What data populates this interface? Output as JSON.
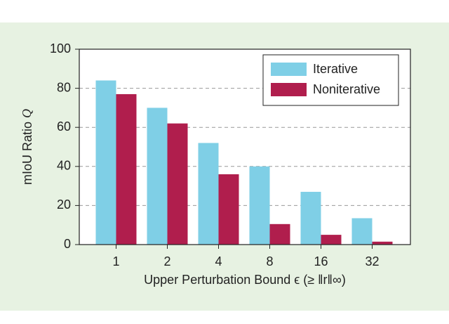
{
  "chart_data": {
    "type": "bar",
    "categories": [
      "1",
      "2",
      "4",
      "8",
      "16",
      "32"
    ],
    "series": [
      {
        "name": "Iterative",
        "color": "#7fcfe6",
        "values": [
          84,
          70,
          52,
          40,
          27,
          13.5
        ]
      },
      {
        "name": "Noniterative",
        "color": "#b01e4d",
        "values": [
          77,
          62,
          36,
          10.5,
          5,
          1.5
        ]
      }
    ],
    "ylim": [
      0,
      100
    ],
    "yticks": [
      0,
      20,
      40,
      60,
      80,
      100
    ],
    "grid": true,
    "y_label": "mIoU Ratio",
    "y_label_symbol": "Q",
    "x_label": "Upper Perturbation Bound ϵ (≥ ‖r‖∞)",
    "legend": "upper right"
  }
}
